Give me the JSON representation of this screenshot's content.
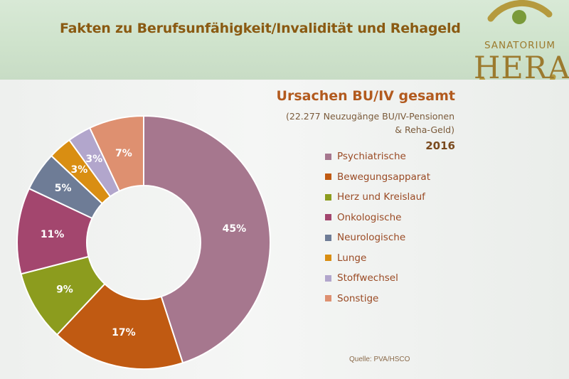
{
  "header": {
    "title": "Fakten zu Berufsunfähigkeit/Invalidität und Rehageld"
  },
  "logo": {
    "line1": "SANATORIUM",
    "line2": "HERA"
  },
  "chart_data": {
    "type": "pie",
    "title": "Ursachen BU/IV gesamt",
    "subtitle_lines": [
      "(22.277 Neuzugänge BU/IV-Pensionen",
      "& Reha-Geld)"
    ],
    "year": "2016",
    "donut": true,
    "legend_position": "right",
    "slices": [
      {
        "label": "Psychiatrische",
        "value": 45,
        "display": "45%",
        "color": "#a6778e"
      },
      {
        "label": "Bewegungsapparat",
        "value": 17,
        "display": "17%",
        "color": "#c05a12"
      },
      {
        "label": "Herz und Kreislauf",
        "value": 9,
        "display": "9%",
        "color": "#8c9c1e"
      },
      {
        "label": "Onkologische",
        "value": 11,
        "display": "11%",
        "color": "#a3466e"
      },
      {
        "label": "Neurologische",
        "value": 5,
        "display": "5%",
        "color": "#6e7c96"
      },
      {
        "label": "Lunge",
        "value": 3,
        "display": "3%",
        "color": "#d98e12"
      },
      {
        "label": "Stoffwechsel",
        "value": 3,
        "display": "3%",
        "color": "#b2a6cc"
      },
      {
        "label": "Sonstige",
        "value": 7,
        "display": "7%",
        "color": "#de9070"
      }
    ]
  },
  "source": "Quelle: PVA/HSCO",
  "colors": {
    "header_title": "#8a5a12",
    "chart_title": "#b25a1e",
    "logo_gold": "#9c7a2e",
    "logo_green": "#7a9a3a"
  }
}
